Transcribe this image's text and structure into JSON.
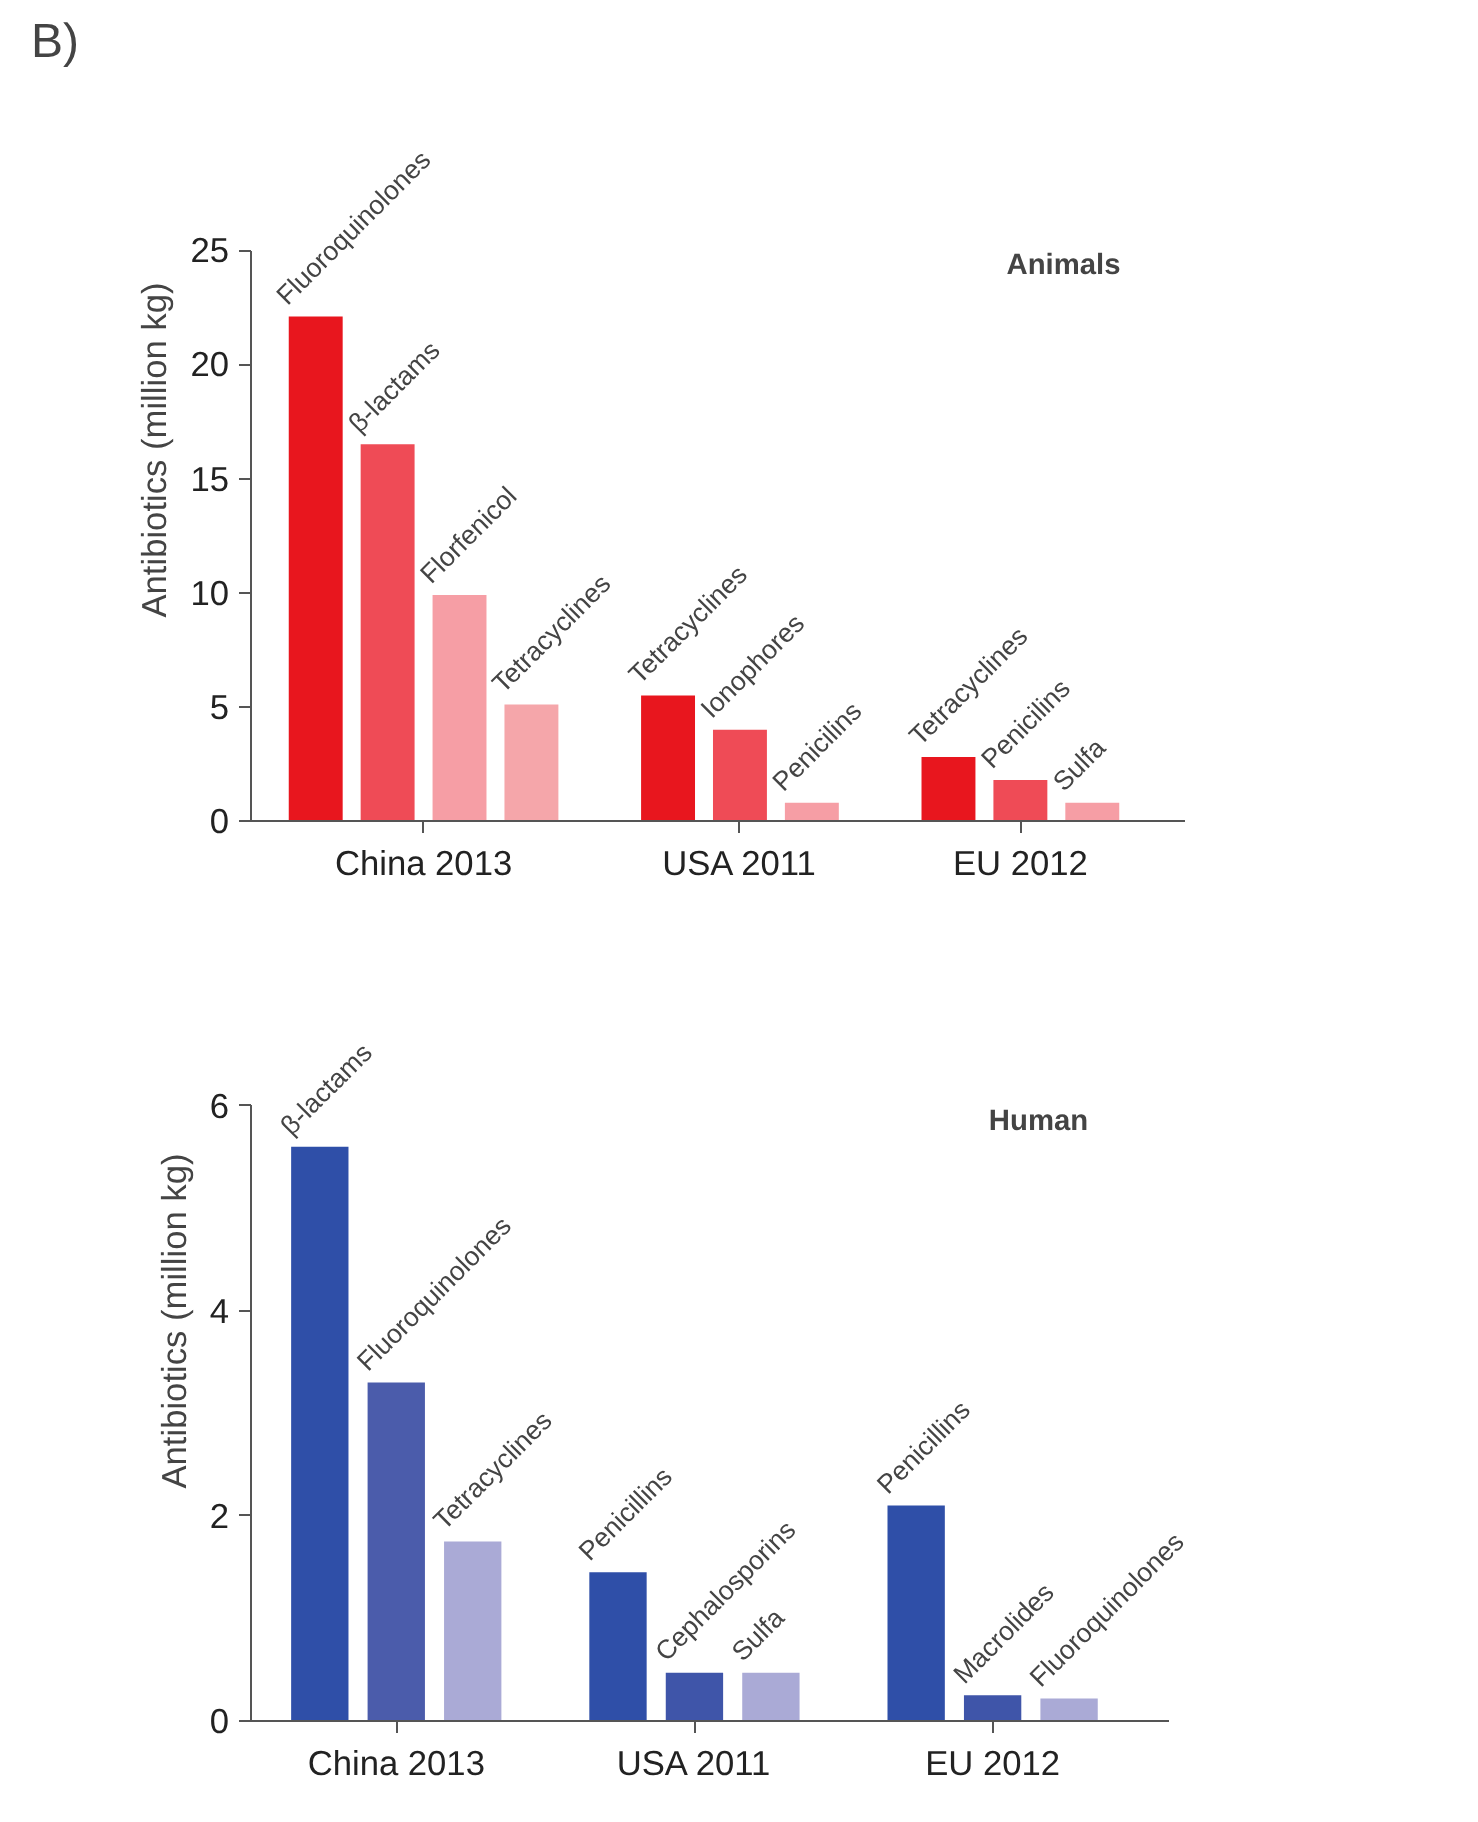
{
  "chart_data": [
    {
      "type": "bar",
      "title": "Animals",
      "ylabel": "Antibiotics (million kg)",
      "annotations": [
        "B)"
      ],
      "categories": [
        "China 2013",
        "USA 2011",
        "EU 2012"
      ],
      "ylim": [
        0,
        25
      ],
      "yticks": [
        0,
        5,
        10,
        15,
        20,
        25
      ],
      "grid": false,
      "series": [
        {
          "colors": [
            "#e8161e",
            "#e8161e",
            "#e8161e"
          ],
          "values": [
            22.1,
            5.5,
            2.8
          ],
          "value_labels": [
            "Fluoroquinolones",
            "Tetracyclines",
            "Tetracyclines"
          ]
        },
        {
          "colors": [
            "#ef4b56",
            "#ef4b56",
            "#ef4b56"
          ],
          "values": [
            16.5,
            4.0,
            1.8
          ],
          "value_labels": [
            "β-lactams",
            "Ionophores",
            "Penicilins"
          ]
        },
        {
          "colors": [
            "#f69ea5",
            "#f69ea5",
            "#f69ea5"
          ],
          "values": [
            9.9,
            0.8,
            0.8
          ],
          "value_labels": [
            "Florfenicol",
            "Penicilins",
            "Sulfa"
          ]
        },
        {
          "colors": [
            "#f5a6aa",
            null,
            null
          ],
          "values": [
            5.1,
            null,
            null
          ],
          "value_labels": [
            "Tetracyclines",
            null,
            null
          ]
        }
      ]
    },
    {
      "type": "bar",
      "title": "Human",
      "ylabel": "Antibiotics (million kg)",
      "categories": [
        "China 2013",
        "USA 2011",
        "EU 2012"
      ],
      "ylim": [
        0,
        6
      ],
      "yticks": [
        0,
        2,
        4,
        6
      ],
      "grid": false,
      "series": [
        {
          "colors": [
            "#2f4fa8",
            "#2f4fa8",
            "#2f4fa8"
          ],
          "values": [
            5.6,
            1.45,
            2.1
          ],
          "value_labels": [
            "β-lactams",
            "Penicillins",
            "Penicillins"
          ]
        },
        {
          "colors": [
            "#4b5cab",
            "#3f55a9",
            "#3f55a9"
          ],
          "values": [
            3.3,
            0.47,
            0.25
          ],
          "value_labels": [
            "Fluoroquinolones",
            "Cephalosporins",
            "Macrolides"
          ]
        },
        {
          "colors": [
            "#aaaad6",
            "#aaaad6",
            "#aaaad6"
          ],
          "values": [
            1.75,
            0.47,
            0.22
          ],
          "value_labels": [
            "Tetracyclines",
            "Sulfa",
            "Fluoroquinolones"
          ]
        }
      ]
    }
  ]
}
